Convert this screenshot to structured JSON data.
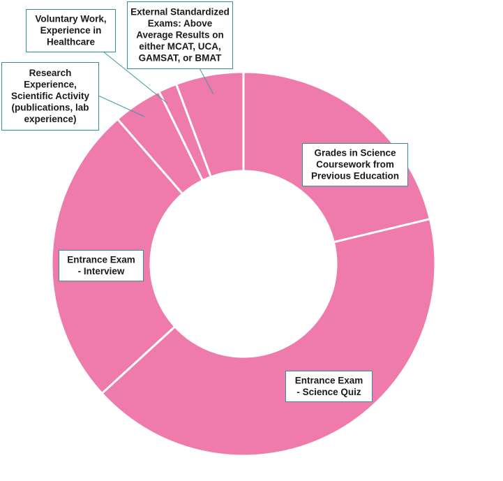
{
  "colors": {
    "slice": "#ef7aac",
    "separator": "#ffffff",
    "callout_border": "#2f8f9d",
    "leader": "#3f9aa6",
    "text": "#1a1a1a"
  },
  "chart_data": {
    "type": "donut",
    "title": "",
    "unit": "approximate share of total (%)",
    "slices": [
      {
        "label": "Grades in Science Coursework from Previous Education",
        "value": 20.5
      },
      {
        "label": "Entrance Exam - Science Quiz",
        "value": 40.5
      },
      {
        "label": "Entrance Exam - Interview",
        "value": 24.5
      },
      {
        "label": "Research Experience, Scientific Activity (publications, lab experience)",
        "value": 4.0
      },
      {
        "label": "Voluntary Work, Experience in Healthcare",
        "value": 1.5
      },
      {
        "label": "External Standardized Exams: Above Average Results on either MCAT, UCA, GAMSAT, or BMAT",
        "value": 5.5
      }
    ],
    "callouts": [
      [
        "Grades in Science",
        "Coursework from",
        "Previous Education"
      ],
      [
        "Entrance Exam",
        "- Science Quiz"
      ],
      [
        "Entrance Exam",
        "- Interview"
      ],
      [
        "Research",
        "Experience,",
        "Scientific Activity",
        "(publications, lab",
        "experience)"
      ],
      [
        "Voluntary Work,",
        "Experience in",
        "Healthcare"
      ],
      [
        "External Standardized",
        "Exams: Above",
        "Average Results on",
        "either MCAT, UCA,",
        "GAMSAT, or BMAT"
      ]
    ]
  }
}
